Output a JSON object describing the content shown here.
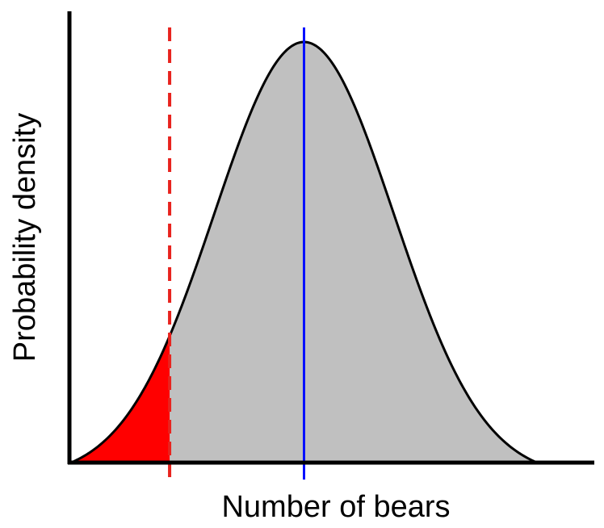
{
  "chart_data": {
    "type": "area",
    "title": "",
    "xlabel": "Number of bears",
    "ylabel": "Probability density",
    "distribution": {
      "shape": "normal",
      "mean": 0,
      "sd": 1,
      "x_range": [
        -2.6,
        2.6
      ]
    },
    "threshold_x": -1.5,
    "mean_x": 0,
    "grid": false,
    "legend": "none",
    "colors": {
      "curve_fill": "#c0c0c0",
      "tail_fill": "#ff0000",
      "curve_line": "#000000",
      "threshold_line": "#e8231e",
      "mean_line": "#0010ff",
      "axis": "#000000"
    }
  }
}
